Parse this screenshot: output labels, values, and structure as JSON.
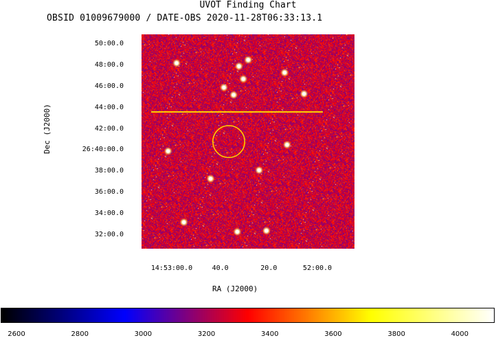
{
  "chart_data": {
    "type": "heatmap",
    "title": "UVOT Finding Chart",
    "subtitle": "OBSID 01009679000 / DATE-OBS 2020-11-28T06:33:13.1",
    "xlabel": "RA (J2000)",
    "ylabel": "Dec (J2000)",
    "y_ticks": [
      {
        "label": "50:00.0",
        "dec_arcmin": 50
      },
      {
        "label": "48:00.0",
        "dec_arcmin": 48
      },
      {
        "label": "46:00.0",
        "dec_arcmin": 46
      },
      {
        "label": "44:00.0",
        "dec_arcmin": 44
      },
      {
        "label": "42:00.0",
        "dec_arcmin": 42
      },
      {
        "label": "26:40:00.0",
        "dec_arcmin": 40
      },
      {
        "label": "38:00.0",
        "dec_arcmin": 38
      },
      {
        "label": "36:00.0",
        "dec_arcmin": 36
      },
      {
        "label": "34:00.0",
        "dec_arcmin": 34
      },
      {
        "label": "32:00.0",
        "dec_arcmin": 32
      }
    ],
    "x_ticks": [
      {
        "label": "14:53:00.0",
        "ra_seconds_from_14h52m": 60
      },
      {
        "label": "40.0",
        "ra_seconds_from_14h52m": 40
      },
      {
        "label": "20.0",
        "ra_seconds_from_14h52m": 20
      },
      {
        "label": "52:00.0",
        "ra_seconds_from_14h52m": 0
      }
    ],
    "colorbar": {
      "ticks": [
        2600,
        2800,
        3000,
        3200,
        3400,
        3600,
        3800,
        4000
      ],
      "range": [
        2550,
        4110
      ],
      "colormap": [
        "#000000",
        "#0000ff",
        "#ff0000",
        "#ffff00",
        "#ffffff"
      ]
    },
    "annotations": {
      "circle": {
        "center_ra_seconds_from_14h52m": 36.5,
        "center_dec_arcmin": 40.8,
        "radius_arcmin": 1.5,
        "color": "#ffd700"
      },
      "streak": {
        "dec_arcmin": 43.6,
        "color": "#ffd700"
      }
    },
    "bright_sources": [
      {
        "ra_seconds_from_14h52m": 32.3,
        "dec_arcmin": 47.9
      },
      {
        "ra_seconds_from_14h52m": 13.5,
        "dec_arcmin": 47.3
      },
      {
        "ra_seconds_from_14h52m": 58.0,
        "dec_arcmin": 48.2
      },
      {
        "ra_seconds_from_14h52m": 38.5,
        "dec_arcmin": 45.9
      },
      {
        "ra_seconds_from_14h52m": 34.5,
        "dec_arcmin": 45.2
      },
      {
        "ra_seconds_from_14h52m": 55.0,
        "dec_arcmin": 33.2
      },
      {
        "ra_seconds_from_14h52m": 30.5,
        "dec_arcmin": 46.7
      },
      {
        "ra_seconds_from_14h52m": 28.5,
        "dec_arcmin": 48.5
      },
      {
        "ra_seconds_from_14h52m": 5.5,
        "dec_arcmin": 45.3
      },
      {
        "ra_seconds_from_14h52m": 61.5,
        "dec_arcmin": 39.9
      },
      {
        "ra_seconds_from_14h52m": 24.0,
        "dec_arcmin": 38.1
      },
      {
        "ra_seconds_from_14h52m": 21.0,
        "dec_arcmin": 32.4
      },
      {
        "ra_seconds_from_14h52m": 12.5,
        "dec_arcmin": 40.5
      },
      {
        "ra_seconds_from_14h52m": 44.0,
        "dec_arcmin": 37.3
      },
      {
        "ra_seconds_from_14h52m": 33.0,
        "dec_arcmin": 32.3
      }
    ]
  }
}
